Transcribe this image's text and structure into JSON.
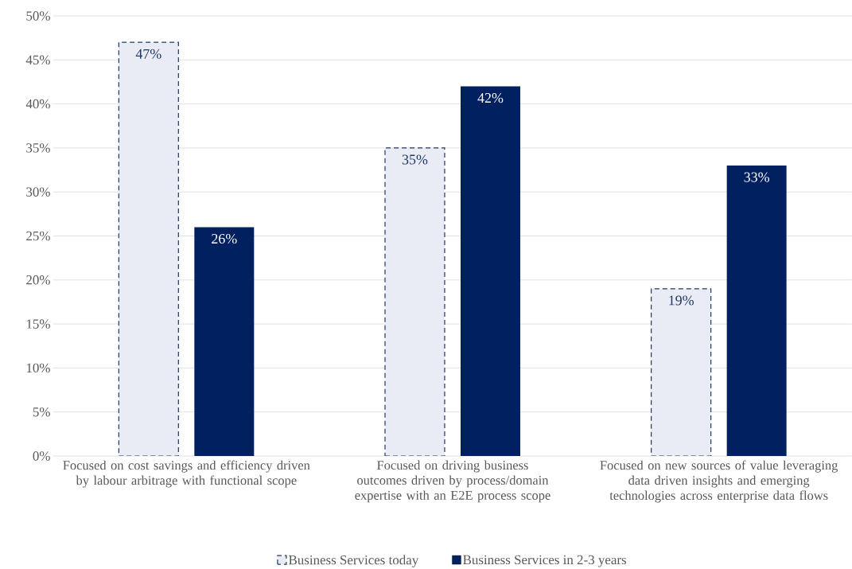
{
  "chart_data": {
    "type": "bar",
    "categories": [
      "Focused on cost savings and efficiency driven by labour arbitrage  with functional scope",
      "Focused on driving business outcomes driven by process/domain expertise with an E2E process scope",
      "Focused on new sources of value leveraging data driven insights and emerging technologies across enterprise data flows"
    ],
    "series": [
      {
        "name": "Business Services today",
        "color": "#e9ebf5",
        "line_style": "dashed",
        "values": [
          47,
          35,
          19
        ],
        "value_labels": [
          "47%",
          "35%",
          "19%"
        ]
      },
      {
        "name": "Business Services in 2-3 years",
        "color": "#002060",
        "values": [
          26,
          42,
          33
        ],
        "value_labels": [
          "26%",
          "42%",
          "33%"
        ]
      }
    ],
    "ylim": [
      0,
      50
    ],
    "yticks": [
      {
        "value": 0,
        "label": "0%"
      },
      {
        "value": 5,
        "label": "5%"
      },
      {
        "value": 10,
        "label": "10%"
      },
      {
        "value": 15,
        "label": "15%"
      },
      {
        "value": 20,
        "label": "20%"
      },
      {
        "value": 25,
        "label": "25%"
      },
      {
        "value": 30,
        "label": "30%"
      },
      {
        "value": 35,
        "label": "35%"
      },
      {
        "value": 40,
        "label": "40%"
      },
      {
        "value": 45,
        "label": "45%"
      },
      {
        "value": 50,
        "label": "50%"
      }
    ],
    "grid": "y",
    "legend": "bottom"
  }
}
